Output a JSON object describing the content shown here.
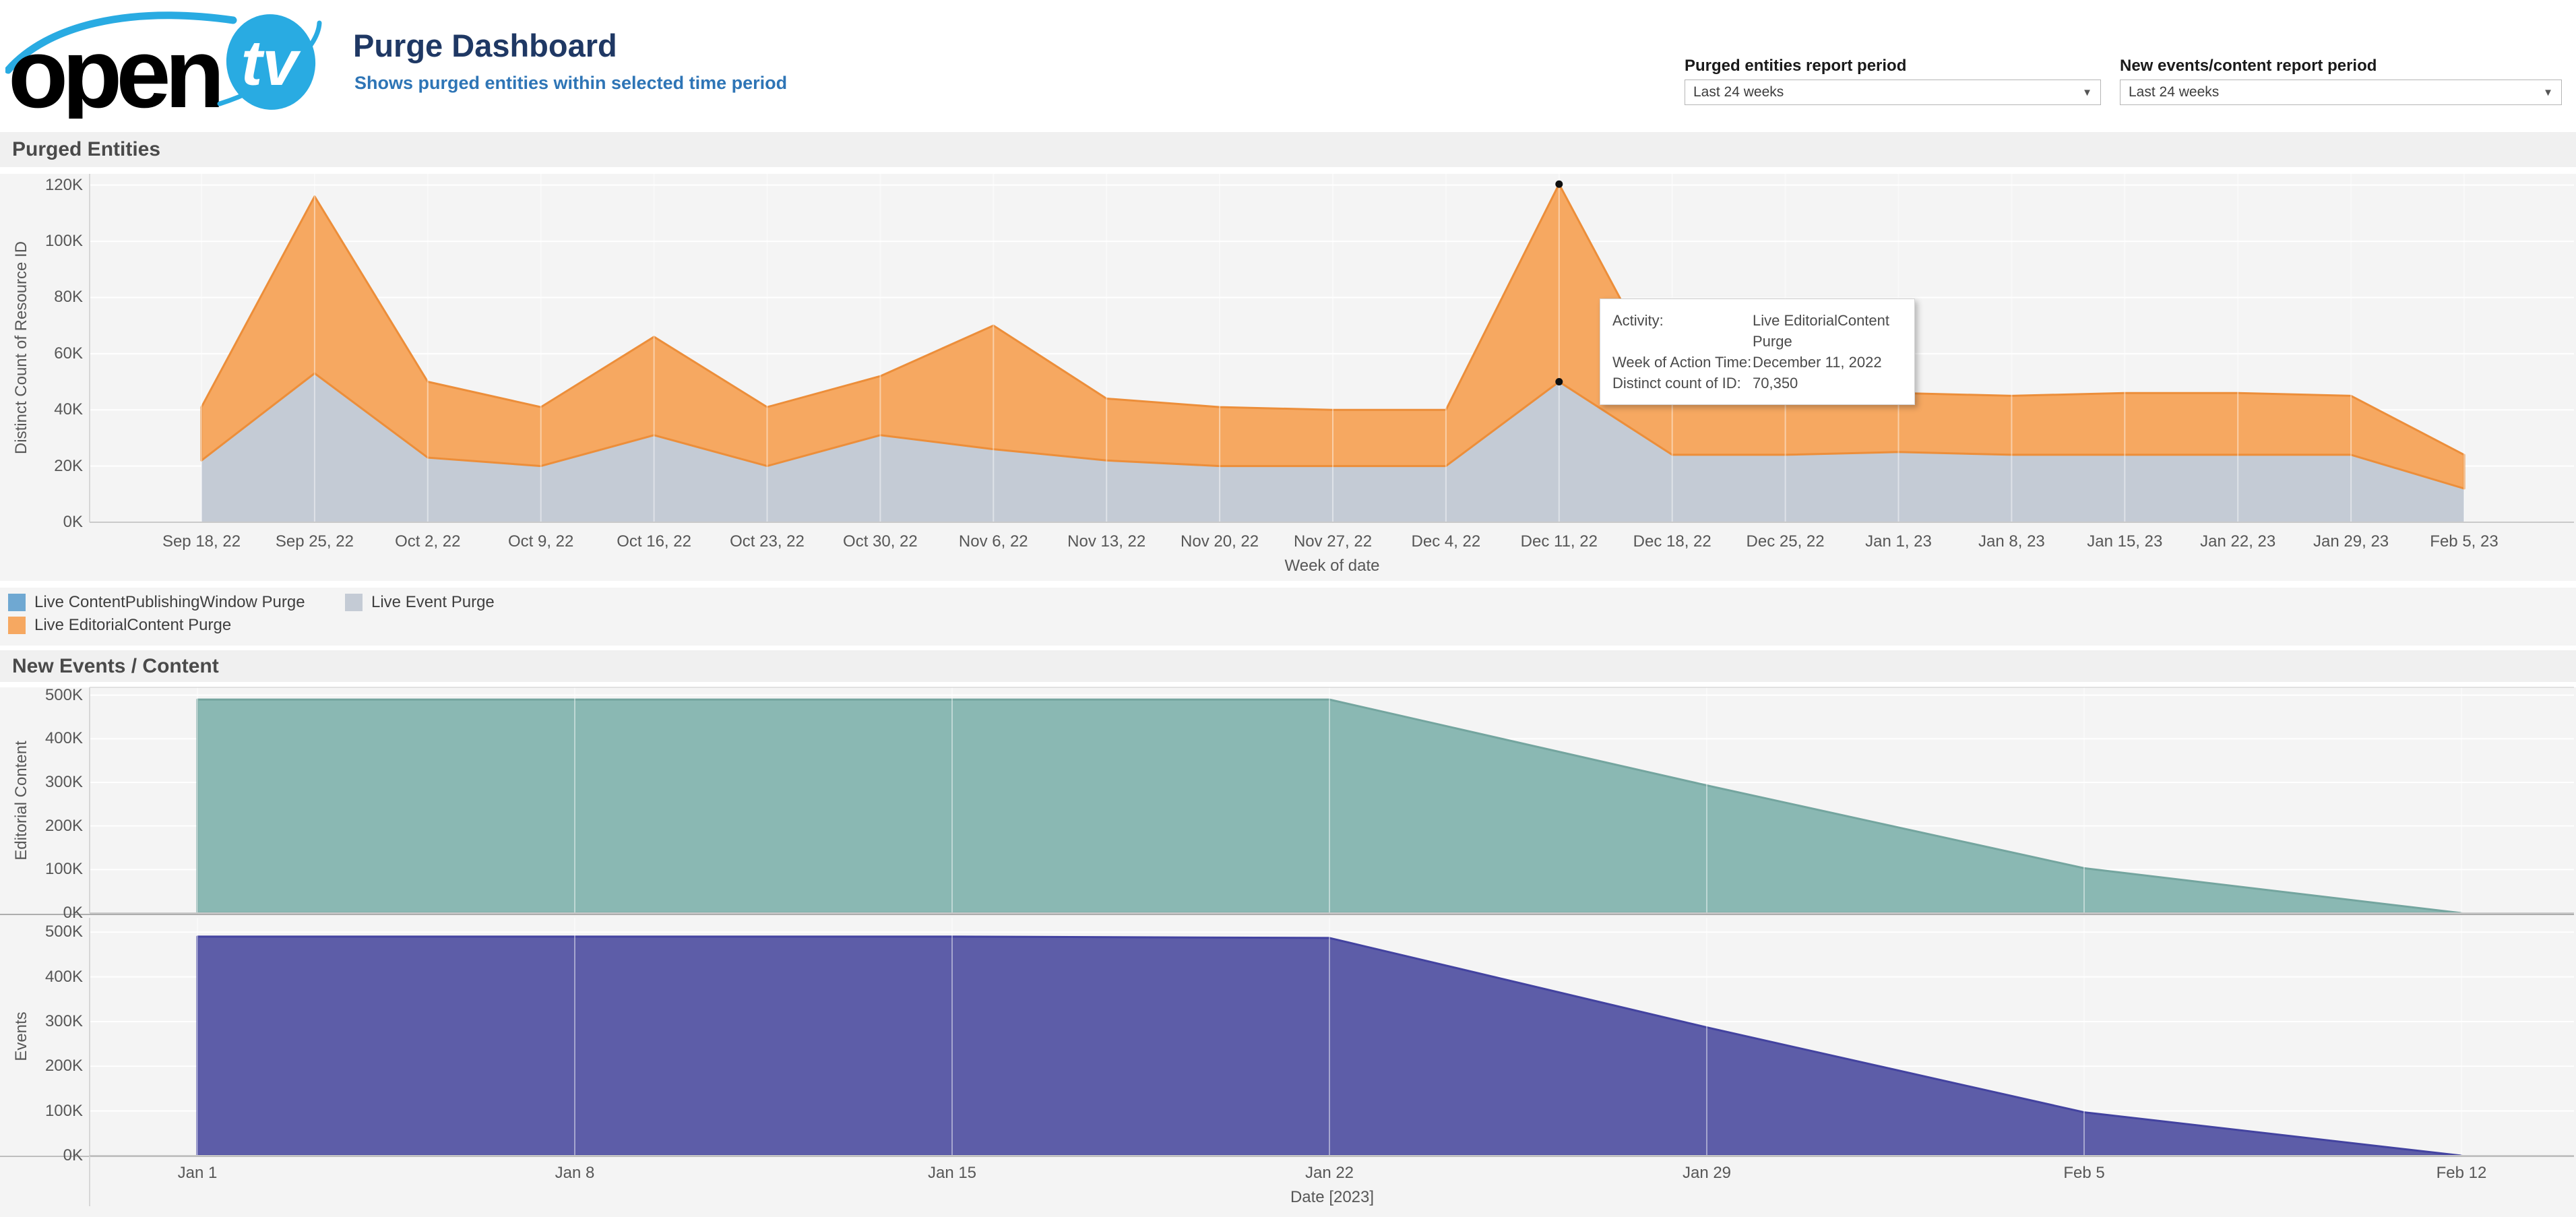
{
  "header": {
    "logo": {
      "word": "open",
      "badge": "tv"
    },
    "title": "Purge Dashboard",
    "subtitle": "Shows purged entities within selected time period",
    "filters": [
      {
        "label": "Purged entities report period",
        "value": "Last 24 weeks"
      },
      {
        "label": "New events/content report period",
        "value": "Last 24 weeks"
      }
    ]
  },
  "purged_entities": {
    "title": "Purged Entities",
    "y_axis_title": "Distinct Count of Resource ID",
    "x_axis_title": "Week of date",
    "legend": [
      {
        "label": "Live ContentPublishingWindow Purge",
        "color": "#6FA8D2"
      },
      {
        "label": "Live Event Purge",
        "color": "#C4CBD5"
      },
      {
        "label": "Live EditorialContent Purge",
        "color": "#F6A861"
      }
    ],
    "tooltip": {
      "rows": [
        {
          "label": "Activity:",
          "value": "Live EditorialContent Purge"
        },
        {
          "label": "Week of Action Time:",
          "value": "December 11, 2022"
        },
        {
          "label": "Distinct count of ID:",
          "value": "70,350"
        }
      ]
    }
  },
  "new_events": {
    "title": "New Events / Content",
    "x_axis_title": "Date [2023]",
    "panel_titles": [
      "Editorial Content",
      "Events"
    ]
  },
  "chart_data": [
    {
      "type": "area",
      "stacked": true,
      "title": "Purged Entities",
      "xlabel": "Week of date",
      "ylabel": "Distinct Count of Resource ID",
      "ylim": [
        0,
        124000
      ],
      "grid_step": 20000,
      "categories": [
        "Sep 18, 22",
        "Sep 25, 22",
        "Oct 2, 22",
        "Oct 9, 22",
        "Oct 16, 22",
        "Oct 23, 22",
        "Oct 30, 22",
        "Nov 6, 22",
        "Nov 13, 22",
        "Nov 20, 22",
        "Nov 27, 22",
        "Dec 4, 22",
        "Dec 11, 22",
        "Dec 18, 22",
        "Dec 25, 22",
        "Jan 1, 23",
        "Jan 8, 23",
        "Jan 15, 23",
        "Jan 22, 23",
        "Jan 29, 23",
        "Feb 5, 23"
      ],
      "series": [
        {
          "name": "Live Event Purge",
          "color": "#C4CBD5",
          "stroke": "none",
          "values": [
            22000,
            53000,
            23000,
            20000,
            31000,
            20000,
            31000,
            26000,
            22000,
            20000,
            20000,
            20000,
            50000,
            24000,
            24000,
            25000,
            24000,
            24000,
            24000,
            24000,
            12000
          ]
        },
        {
          "name": "Live EditorialContent Purge",
          "color": "#F6A861",
          "stroke": "#EC8E3A",
          "values": [
            19000,
            63000,
            27000,
            21000,
            35000,
            21000,
            21000,
            44000,
            22000,
            21000,
            20000,
            20000,
            70350,
            21000,
            21000,
            21000,
            21000,
            22000,
            22000,
            21000,
            12000
          ]
        },
        {
          "name": "Live ContentPublishingWindow Purge",
          "color": "#6FA8D2",
          "stroke": "none",
          "values": [
            0,
            0,
            0,
            0,
            0,
            0,
            0,
            0,
            0,
            0,
            0,
            0,
            0,
            0,
            0,
            0,
            0,
            0,
            0,
            0,
            0
          ]
        }
      ],
      "marked_point": {
        "category": "Dec 11, 22",
        "series": "Live EditorialContent Purge",
        "value_label": "70,350"
      }
    },
    {
      "type": "area",
      "title": "New Events / Content - Editorial Content",
      "xlabel": "Date [2023]",
      "ylabel": "Editorial Content",
      "ylim": [
        0,
        518000
      ],
      "grid_step": 100000,
      "categories": [
        "Jan 1",
        "Jan 8",
        "Jan 15",
        "Jan 22",
        "Jan 29",
        "Feb 5",
        "Feb 12"
      ],
      "series": [
        {
          "name": "Editorial Content",
          "color": "#8AB8B3",
          "stroke": "#74A59F",
          "values": [
            490000,
            490000,
            490000,
            490000,
            293000,
            103000,
            0
          ]
        }
      ]
    },
    {
      "type": "area",
      "title": "New Events / Content - Events",
      "xlabel": "Date [2023]",
      "ylabel": "Events",
      "ylim": [
        0,
        532000
      ],
      "grid_step": 100000,
      "categories": [
        "Jan 1",
        "Jan 8",
        "Jan 15",
        "Jan 22",
        "Jan 29",
        "Feb 5",
        "Feb 12"
      ],
      "series": [
        {
          "name": "Events",
          "color": "#5D5DA8",
          "stroke": "#4343A0",
          "values": [
            490000,
            490000,
            490000,
            487000,
            287000,
            97000,
            0
          ]
        }
      ]
    }
  ]
}
